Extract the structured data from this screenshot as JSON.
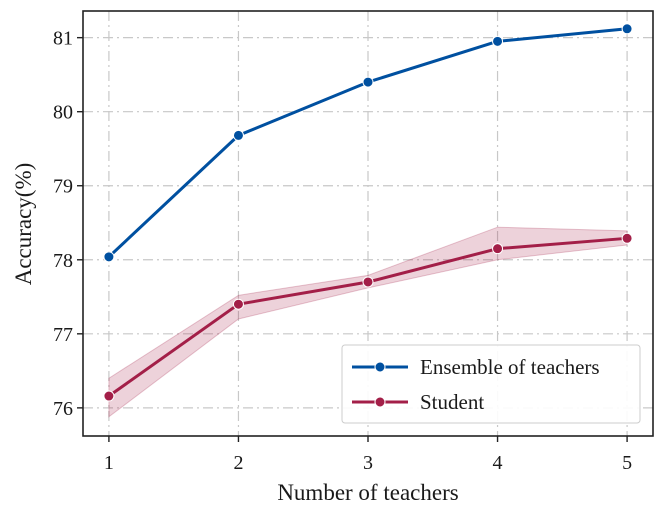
{
  "chart_data": {
    "type": "line",
    "xlabel": "Number of teachers",
    "ylabel": "Accuracy(%)",
    "x": [
      1,
      2,
      3,
      4,
      5
    ],
    "xlim": [
      0.8,
      5.2
    ],
    "ylim": [
      75.62,
      81.36
    ],
    "yticks": [
      76,
      77,
      78,
      79,
      80,
      81
    ],
    "grid": true,
    "legend_position": "bottom-right",
    "series": [
      {
        "name": "Ensemble of teachers",
        "color": "#0050a0",
        "values": [
          78.04,
          79.68,
          80.4,
          80.95,
          81.12
        ]
      },
      {
        "name": "Student",
        "color": "#a31f48",
        "values": [
          76.16,
          77.4,
          77.7,
          78.15,
          78.29
        ],
        "band_lower": [
          75.88,
          77.2,
          77.62,
          78.0,
          78.2
        ],
        "band_upper": [
          76.4,
          77.52,
          77.79,
          78.44,
          78.39
        ]
      }
    ]
  }
}
